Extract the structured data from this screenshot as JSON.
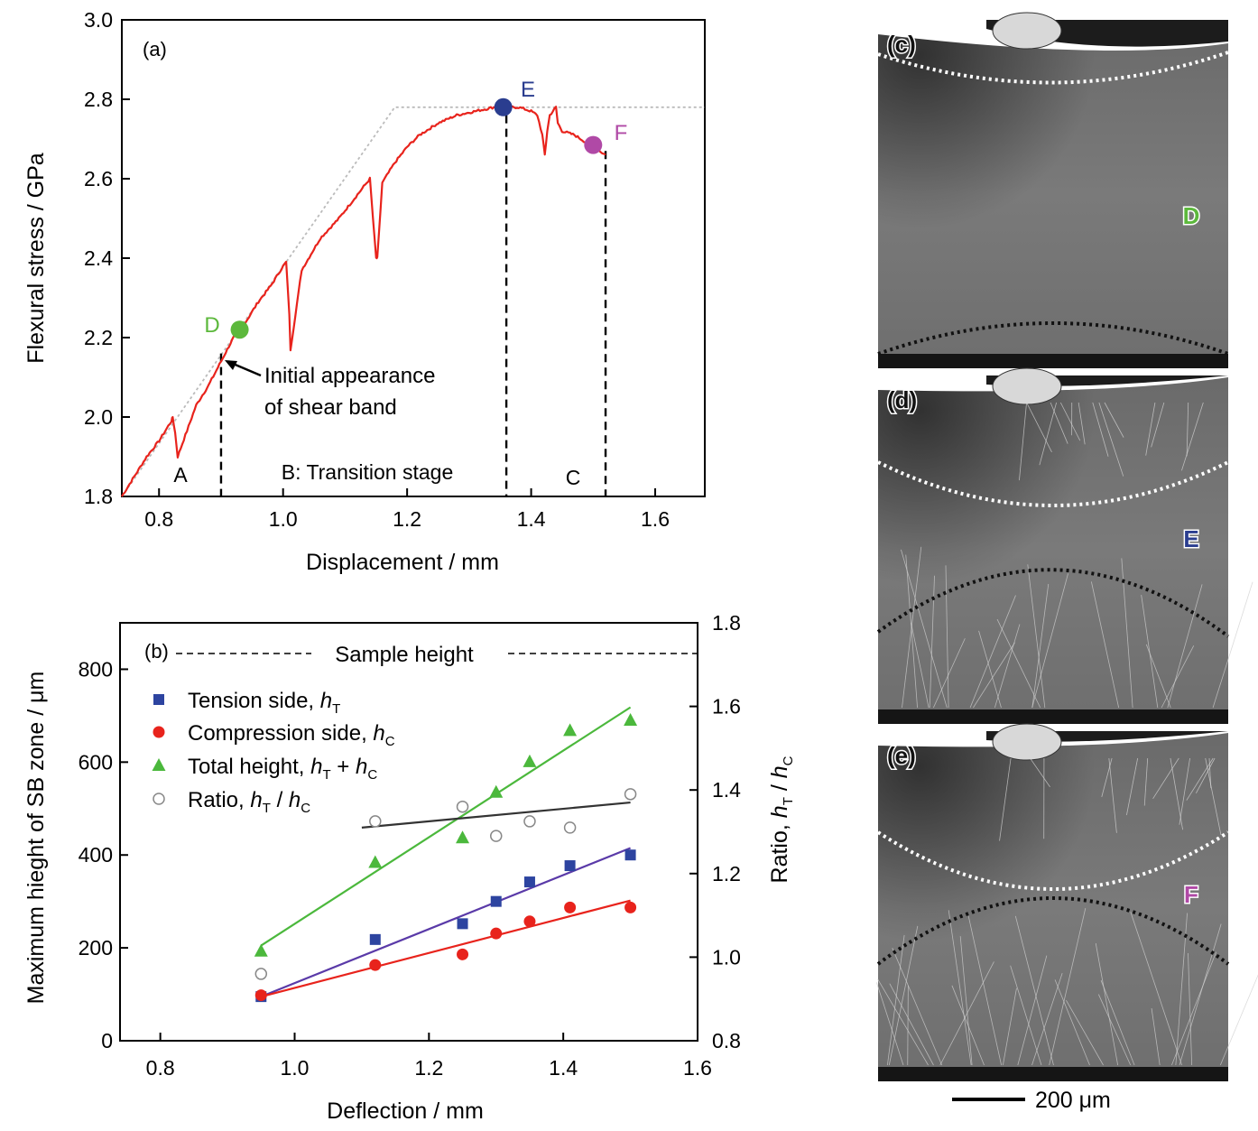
{
  "chart_data": [
    {
      "panel": "(a)",
      "type": "line",
      "xlabel": "Displacement / mm",
      "ylabel": "Flexural stress / GPa",
      "xlim": [
        0.74,
        1.68
      ],
      "ylim": [
        1.8,
        3.0
      ],
      "xticks": [
        "0.8",
        "1.0",
        "1.2",
        "1.4",
        "1.6"
      ],
      "yticks": [
        "1.8",
        "2.0",
        "2.2",
        "2.4",
        "2.6",
        "2.8",
        "3.0"
      ],
      "grid": false,
      "series": [
        {
          "color": "#e8231c",
          "x": [
            0.74,
            0.76,
            0.78,
            0.8,
            0.82,
            0.822,
            0.826,
            0.83,
            0.86,
            0.88,
            0.9,
            0.92,
            0.94,
            0.96,
            0.98,
            1.0,
            1.005,
            1.01,
            1.012,
            1.03,
            1.06,
            1.09,
            1.12,
            1.14,
            1.145,
            1.15,
            1.152,
            1.16,
            1.18,
            1.2,
            1.22,
            1.25,
            1.28,
            1.31,
            1.34,
            1.36,
            1.38,
            1.4,
            1.41,
            1.418,
            1.422,
            1.426,
            1.43,
            1.44,
            1.443,
            1.45,
            1.47,
            1.49,
            1.5,
            1.51,
            1.52
          ],
          "y": [
            1.8,
            1.85,
            1.9,
            1.94,
            1.99,
            2.0,
            1.96,
            1.9,
            2.03,
            2.08,
            2.14,
            2.2,
            2.24,
            2.29,
            2.33,
            2.38,
            2.39,
            2.26,
            2.17,
            2.37,
            2.45,
            2.5,
            2.56,
            2.6,
            2.5,
            2.4,
            2.4,
            2.59,
            2.64,
            2.68,
            2.71,
            2.74,
            2.76,
            2.77,
            2.78,
            2.78,
            2.78,
            2.77,
            2.76,
            2.71,
            2.66,
            2.72,
            2.76,
            2.78,
            2.74,
            2.72,
            2.71,
            2.69,
            2.68,
            2.67,
            2.66
          ]
        },
        {
          "style": "dotted-reference",
          "color": "#bbbbbb",
          "x": [
            0.74,
            1.18,
            1.68
          ],
          "y": [
            1.8,
            2.78,
            2.78
          ]
        }
      ],
      "markers": [
        {
          "label": "D",
          "x": 0.93,
          "y": 2.22,
          "color": "#5cb83c"
        },
        {
          "label": "E",
          "x": 1.355,
          "y": 2.78,
          "color": "#2a3d8f"
        },
        {
          "label": "F",
          "x": 1.5,
          "y": 2.685,
          "color": "#b049a6"
        }
      ],
      "stage_boundaries_x": [
        0.9,
        1.36,
        1.52
      ],
      "stage_labels": [
        "A",
        "B: Transition stage",
        "C"
      ],
      "annotation": [
        "Initial appearance",
        "of shear band"
      ]
    },
    {
      "panel": "(b)",
      "type": "scatter",
      "xlabel": "Deflection / mm",
      "ylabel": "Maximum hieght of SB zone / μm",
      "y2label": "Ratio, h_T / h_C",
      "xlim": [
        0.74,
        1.6
      ],
      "ylim": [
        0,
        900
      ],
      "y2lim": [
        0.8,
        1.8
      ],
      "xticks": [
        "0.8",
        "1.0",
        "1.2",
        "1.4",
        "1.6"
      ],
      "yticks": [
        "0",
        "200",
        "400",
        "600",
        "800"
      ],
      "y2ticks": [
        "0.8",
        "1.0",
        "1.2",
        "1.4",
        "1.6",
        "1.8"
      ],
      "reference_line": {
        "label": "Sample height",
        "y": 840
      },
      "series": [
        {
          "name": "Tension side, h_T",
          "marker": "square",
          "color": "#2d44a0",
          "line_color": "#5a3aa8",
          "axis": "left",
          "x": [
            0.95,
            1.12,
            1.25,
            1.3,
            1.35,
            1.41,
            1.5
          ],
          "y": [
            95,
            218,
            252,
            300,
            342,
            377,
            400
          ],
          "fit": [
            [
              0.95,
              95
            ],
            [
              1.5,
              415
            ]
          ]
        },
        {
          "name": "Compression side, h_C",
          "marker": "circle",
          "color": "#e8231c",
          "line_color": "#e8231c",
          "axis": "left",
          "x": [
            0.95,
            1.12,
            1.25,
            1.3,
            1.35,
            1.41,
            1.5
          ],
          "y": [
            98,
            163,
            186,
            231,
            257,
            287,
            287
          ],
          "fit": [
            [
              0.95,
              95
            ],
            [
              1.5,
              302
            ]
          ]
        },
        {
          "name": "Total height, h_T + h_C",
          "marker": "triangle",
          "color": "#4bb83c",
          "line_color": "#4bb83c",
          "axis": "left",
          "x": [
            0.95,
            1.12,
            1.25,
            1.3,
            1.35,
            1.41,
            1.5
          ],
          "y": [
            193,
            384,
            437,
            535,
            601,
            668,
            690
          ],
          "fit": [
            [
              0.95,
              205
            ],
            [
              1.5,
              718
            ]
          ]
        },
        {
          "name": "Ratio, h_T / h_C",
          "marker": "open-circle",
          "color": "#888888",
          "line_color": "#333333",
          "axis": "right",
          "x": [
            0.95,
            1.12,
            1.25,
            1.3,
            1.35,
            1.41,
            1.5
          ],
          "y": [
            0.96,
            1.325,
            1.36,
            1.29,
            1.325,
            1.31,
            1.39
          ],
          "fit": [
            [
              1.1,
              1.31
            ],
            [
              1.5,
              1.37
            ]
          ]
        }
      ]
    }
  ],
  "panel_a": {
    "label": "(a)",
    "xlabel": "Displacement / mm",
    "ylabel": "Flexural stress / GPa",
    "stage_a": "A",
    "stage_b": "B: Transition stage",
    "stage_c": "C",
    "annot1": "Initial appearance",
    "annot2": "of shear band",
    "d": "D",
    "e": "E",
    "f": "F"
  },
  "panel_b": {
    "label": "(b)",
    "xlabel": "Deflection / mm",
    "ylabel": "Maximum hieght of SB zone / μm",
    "y2label_main": "Ratio, ",
    "sample_height": "Sample height",
    "legend": [
      {
        "pre": "Tension side, ",
        "v1": "h",
        "s1": "T",
        "mid": "",
        "v2": "",
        "s2": ""
      },
      {
        "pre": "Compression side, ",
        "v1": "h",
        "s1": "C",
        "mid": "",
        "v2": "",
        "s2": ""
      },
      {
        "pre": "Total height, ",
        "v1": "h",
        "s1": "T",
        "mid": " + ",
        "v2": "h",
        "s2": "C"
      },
      {
        "pre": "Ratio, ",
        "v1": "h",
        "s1": "T",
        "mid": " / ",
        "v2": "h",
        "s2": "C"
      }
    ]
  },
  "micrographs": [
    {
      "label": "(c)",
      "marker": "D",
      "marker_color": "#5cb83c"
    },
    {
      "label": "(d)",
      "marker": "E",
      "marker_color": "#2a3d8f"
    },
    {
      "label": "(e)",
      "marker": "F",
      "marker_color": "#b049a6"
    }
  ],
  "scale_bar": {
    "label": "200 μm"
  }
}
